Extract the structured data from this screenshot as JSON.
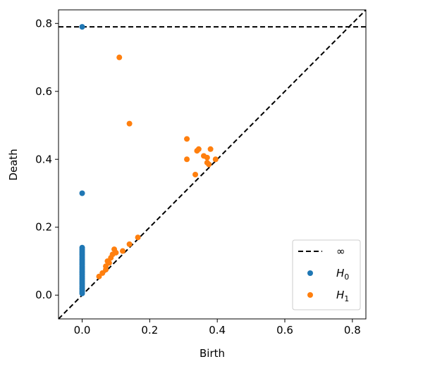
{
  "chart_data": {
    "type": "scatter",
    "title": "",
    "xlabel": "Birth",
    "ylabel": "Death",
    "xlim": [
      -0.07,
      0.84
    ],
    "ylim": [
      -0.07,
      0.84
    ],
    "xticks": [
      0.0,
      0.2,
      0.4,
      0.6,
      0.8
    ],
    "yticks": [
      0.0,
      0.2,
      0.4,
      0.6,
      0.8
    ],
    "xtick_labels": [
      "0.0",
      "0.2",
      "0.4",
      "0.6",
      "0.8"
    ],
    "ytick_labels": [
      "0.0",
      "0.2",
      "0.4",
      "0.6",
      "0.8"
    ],
    "grid": false,
    "legend_position": "bottom-right",
    "diagonal": {
      "style": "dashed",
      "color": "#000000"
    },
    "infinity_line": {
      "y": 0.79,
      "label": "∞",
      "style": "dashed",
      "color": "#000000"
    },
    "series": [
      {
        "name": "H0",
        "label_main": "H",
        "label_sub": "0",
        "color": "#1f77b4",
        "points": [
          [
            0,
            0.79
          ],
          [
            0,
            0.3
          ],
          [
            0,
            0.14
          ],
          [
            0,
            0.135
          ],
          [
            0,
            0.13
          ],
          [
            0,
            0.125
          ],
          [
            0,
            0.12
          ],
          [
            0,
            0.115
          ],
          [
            0,
            0.11
          ],
          [
            0,
            0.105
          ],
          [
            0,
            0.1
          ],
          [
            0,
            0.095
          ],
          [
            0,
            0.09
          ],
          [
            0,
            0.085
          ],
          [
            0,
            0.08
          ],
          [
            0,
            0.075
          ],
          [
            0,
            0.07
          ],
          [
            0,
            0.065
          ],
          [
            0,
            0.06
          ],
          [
            0,
            0.055
          ],
          [
            0,
            0.05
          ],
          [
            0,
            0.045
          ],
          [
            0,
            0.04
          ],
          [
            0,
            0.035
          ],
          [
            0,
            0.03
          ],
          [
            0,
            0.025
          ],
          [
            0,
            0.02
          ],
          [
            0,
            0.015
          ],
          [
            0,
            0.01
          ],
          [
            0,
            0.005
          ]
        ]
      },
      {
        "name": "H1",
        "label_main": "H",
        "label_sub": "1",
        "color": "#ff7f0e",
        "points": [
          [
            0.11,
            0.7
          ],
          [
            0.14,
            0.505
          ],
          [
            0.31,
            0.46
          ],
          [
            0.31,
            0.4
          ],
          [
            0.34,
            0.425
          ],
          [
            0.345,
            0.43
          ],
          [
            0.36,
            0.41
          ],
          [
            0.37,
            0.405
          ],
          [
            0.38,
            0.43
          ],
          [
            0.37,
            0.39
          ],
          [
            0.375,
            0.385
          ],
          [
            0.395,
            0.4
          ],
          [
            0.335,
            0.355
          ],
          [
            0.05,
            0.055
          ],
          [
            0.06,
            0.065
          ],
          [
            0.07,
            0.075
          ],
          [
            0.07,
            0.085
          ],
          [
            0.08,
            0.095
          ],
          [
            0.075,
            0.1
          ],
          [
            0.085,
            0.11
          ],
          [
            0.09,
            0.12
          ],
          [
            0.1,
            0.125
          ],
          [
            0.095,
            0.135
          ],
          [
            0.12,
            0.13
          ],
          [
            0.14,
            0.15
          ],
          [
            0.165,
            0.17
          ]
        ]
      }
    ]
  }
}
